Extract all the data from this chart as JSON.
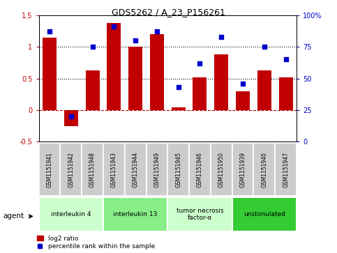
{
  "title": "GDS5262 / A_23_P156261",
  "samples": [
    "GSM1151941",
    "GSM1151942",
    "GSM1151948",
    "GSM1151943",
    "GSM1151944",
    "GSM1151949",
    "GSM1151945",
    "GSM1151946",
    "GSM1151950",
    "GSM1151939",
    "GSM1151940",
    "GSM1151947"
  ],
  "log2_ratio": [
    1.15,
    -0.25,
    0.63,
    1.38,
    1.0,
    1.2,
    0.04,
    0.52,
    0.88,
    0.3,
    0.63,
    0.52
  ],
  "percentile": [
    87,
    20,
    75,
    91,
    80,
    87,
    43,
    62,
    83,
    46,
    75,
    65
  ],
  "bar_color": "#c00000",
  "dot_color": "#0000cc",
  "ylim_left": [
    -0.5,
    1.5
  ],
  "ylim_right": [
    0,
    100
  ],
  "yticks_left": [
    -0.5,
    0.0,
    0.5,
    1.0,
    1.5
  ],
  "yticks_right": [
    0,
    25,
    50,
    75,
    100
  ],
  "ytick_labels_left": [
    "-0.5",
    "0",
    "0.5",
    "1",
    "1.5"
  ],
  "ytick_labels_right": [
    "0",
    "25",
    "50",
    "75",
    "100%"
  ],
  "agent_groups": [
    {
      "label": "interleukin 4",
      "start": 0,
      "end": 2,
      "color": "#ccffcc"
    },
    {
      "label": "interleukin 13",
      "start": 3,
      "end": 5,
      "color": "#88ee88"
    },
    {
      "label": "tumor necrosis\nfactor-α",
      "start": 6,
      "end": 8,
      "color": "#ccffcc"
    },
    {
      "label": "unstimulated",
      "start": 9,
      "end": 11,
      "color": "#33cc33"
    }
  ],
  "legend_bar_label": "log2 ratio",
  "legend_dot_label": "percentile rank within the sample",
  "bg_color": "#ffffff",
  "sample_bg": "#cccccc",
  "fig_width": 4.83,
  "fig_height": 3.63,
  "dpi": 100
}
